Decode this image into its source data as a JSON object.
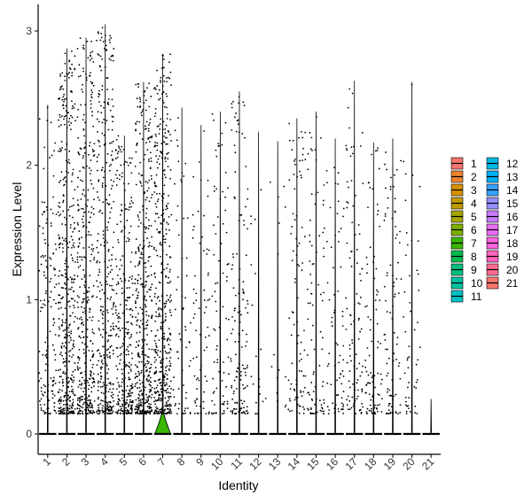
{
  "chart_data": {
    "type": "violin",
    "title": "",
    "xlabel": "Identity",
    "ylabel": "Expression Level",
    "ylim": [
      -0.15,
      3.1
    ],
    "yticks": [
      0,
      1,
      2,
      3
    ],
    "grid": false,
    "legend_placement": "right",
    "categories": [
      "1",
      "2",
      "3",
      "4",
      "5",
      "6",
      "7",
      "8",
      "9",
      "10",
      "11",
      "12",
      "13",
      "14",
      "15",
      "16",
      "17",
      "18",
      "19",
      "20",
      "21"
    ],
    "colors": [
      "#F8766D",
      "#EA8331",
      "#D89000",
      "#C09B00",
      "#A3A500",
      "#7CAE00",
      "#39B600",
      "#00BB4E",
      "#00BF7D",
      "#00C1A3",
      "#00BFC4",
      "#00BAE0",
      "#00B0F6",
      "#35A2FF",
      "#9590FF",
      "#C77CFF",
      "#E76BF3",
      "#FA62DB",
      "#FF62BC",
      "#FF6C91",
      "#F8766D"
    ],
    "max_values": [
      2.45,
      2.87,
      2.95,
      3.05,
      2.22,
      2.62,
      2.83,
      2.43,
      2.3,
      2.4,
      2.55,
      2.25,
      2.18,
      2.35,
      2.4,
      2.2,
      2.63,
      2.17,
      2.2,
      2.62,
      0.26
    ],
    "nonzero_points": [
      150,
      420,
      380,
      360,
      300,
      420,
      450,
      60,
      70,
      80,
      140,
      20,
      15,
      90,
      90,
      70,
      100,
      90,
      90,
      50,
      0
    ],
    "zero_density_peak": [
      0.02,
      0.02,
      0.02,
      0.02,
      0.02,
      0.02,
      0.9,
      0.02,
      0.02,
      0.02,
      0.02,
      0.02,
      0.02,
      0.02,
      0.02,
      0.02,
      0.02,
      0.02,
      0.02,
      0.02,
      0.02
    ]
  },
  "legend": {
    "columns": [
      [
        "1",
        "2",
        "3",
        "4",
        "5",
        "6",
        "7",
        "8",
        "9",
        "10",
        "11"
      ],
      [
        "12",
        "13",
        "14",
        "15",
        "16",
        "17",
        "18",
        "19",
        "20",
        "21"
      ]
    ]
  }
}
